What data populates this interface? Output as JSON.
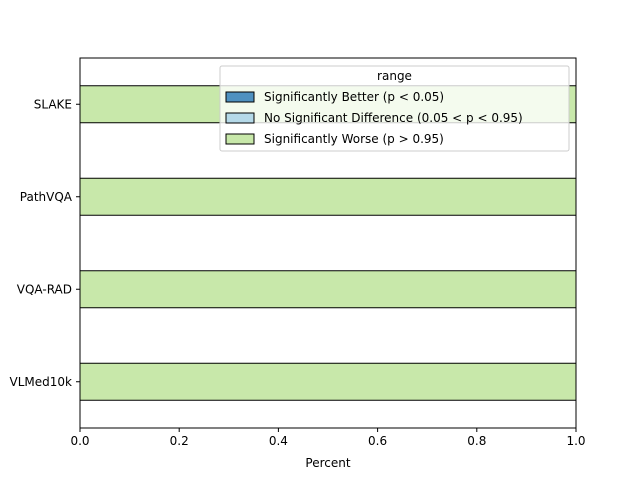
{
  "chart_data": {
    "type": "bar",
    "orientation": "horizontal",
    "stacked": true,
    "categories": [
      "SLAKE",
      "PathVQA",
      "VQA-RAD",
      "VLMed10k"
    ],
    "series": [
      {
        "name": "Significantly Better (p < 0.05)",
        "values": [
          0,
          0,
          0,
          0
        ],
        "color": "#4f91c0"
      },
      {
        "name": "No Significant Difference (0.05 < p < 0.95)",
        "values": [
          0,
          0,
          0,
          0
        ],
        "color": "#b5d9e8"
      },
      {
        "name": "Significantly Worse (p > 0.95)",
        "values": [
          1.0,
          1.0,
          1.0,
          1.0
        ],
        "color": "#c8e8aa"
      }
    ],
    "xlabel": "Percent",
    "ylabel": "",
    "xlim": [
      0.0,
      1.0
    ],
    "xticks": [
      "0.0",
      "0.2",
      "0.4",
      "0.6",
      "0.8",
      "1.0"
    ],
    "legend": {
      "title": "range",
      "position": "top-right"
    },
    "grid": false
  }
}
